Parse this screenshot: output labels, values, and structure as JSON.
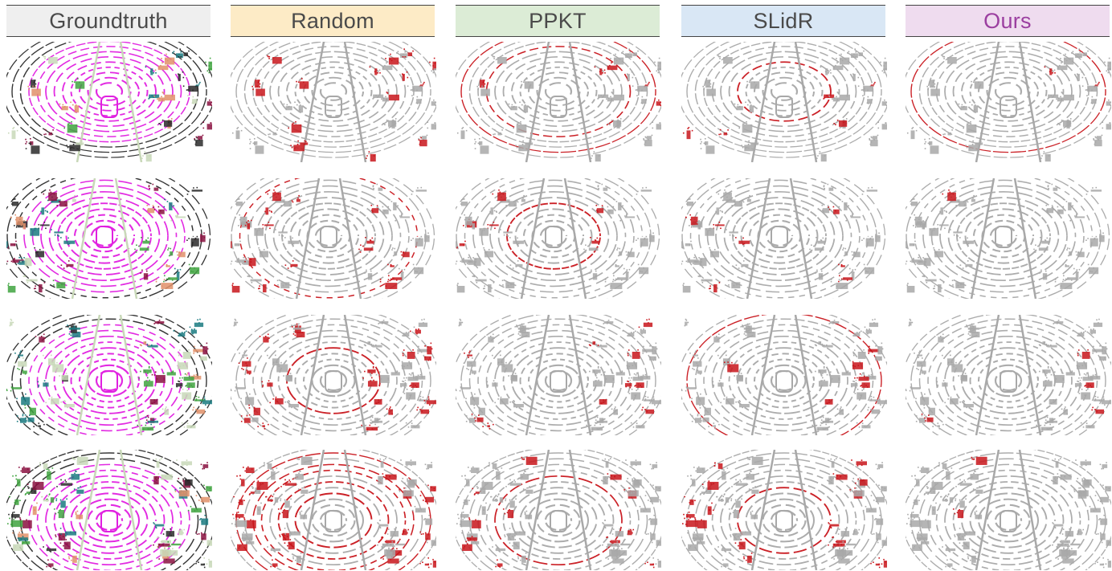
{
  "columns": [
    {
      "key": "groundtruth",
      "title": "Groundtruth",
      "bg": "#efefef",
      "text_color": "#4a4a4a",
      "style": "gt"
    },
    {
      "key": "random",
      "title": "Random",
      "bg": "#fdebc6",
      "text_color": "#4a4a4a",
      "style": "random"
    },
    {
      "key": "ppkt",
      "title": "PPKT",
      "bg": "#dcecd6",
      "text_color": "#4a4a4a",
      "style": "ppkt"
    },
    {
      "key": "slidr",
      "title": "SLidR",
      "bg": "#d9e7f5",
      "text_color": "#4a4a4a",
      "style": "slidr"
    },
    {
      "key": "ours",
      "title": "Ours",
      "bg": "#efdcef",
      "text_color": "#9b3fa0",
      "style": "ours"
    }
  ],
  "rows": 4,
  "colors": {
    "error": "#c8151b",
    "correct": "#a8a8a8",
    "road": "#e020e0",
    "vegetation": "#3fa33f",
    "manmade": "#c8d8b8",
    "car": "#e0906a",
    "barrier": "#2a2a2a",
    "truck": "#8a1040",
    "trailer": "#1a7a80"
  },
  "icons": []
}
